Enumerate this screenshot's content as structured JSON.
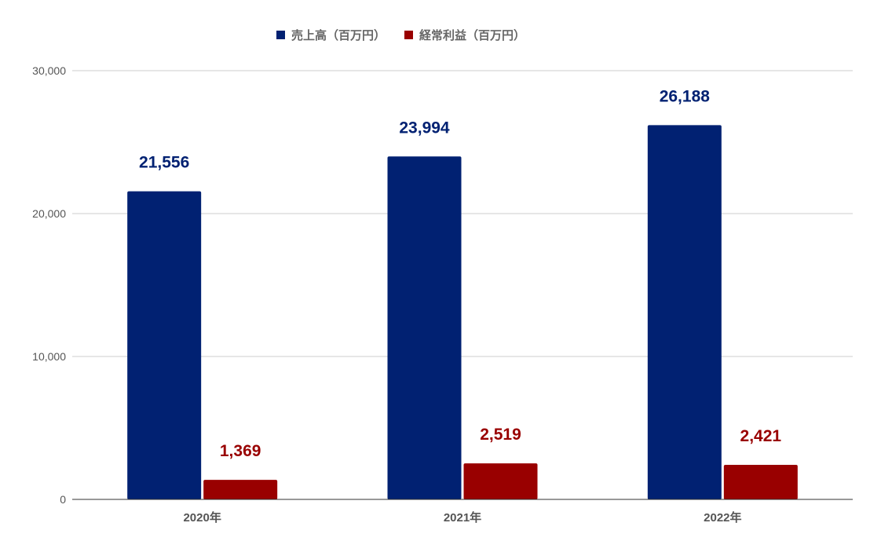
{
  "chart_data": {
    "type": "bar",
    "categories": [
      "2020年",
      "2021年",
      "2022年"
    ],
    "series": [
      {
        "name": "売上高（百万円）",
        "values": [
          21556,
          23994,
          26188
        ],
        "color": "#012172",
        "labels": [
          "21,556",
          "23,994",
          "26,188"
        ]
      },
      {
        "name": "経常利益（百万円）",
        "values": [
          1369,
          2519,
          2421
        ],
        "color": "#990000",
        "labels": [
          "1,369",
          "2,519",
          "2,421"
        ]
      }
    ],
    "ylim": [
      0,
      30000
    ],
    "yticks": [
      0,
      10000,
      20000,
      30000
    ],
    "ytick_labels": [
      "0",
      "10,000",
      "20,000",
      "30,000"
    ],
    "grid": true,
    "legend_position": "top-center",
    "gridline_color": "#cccccc",
    "axis_color": "#333333"
  }
}
